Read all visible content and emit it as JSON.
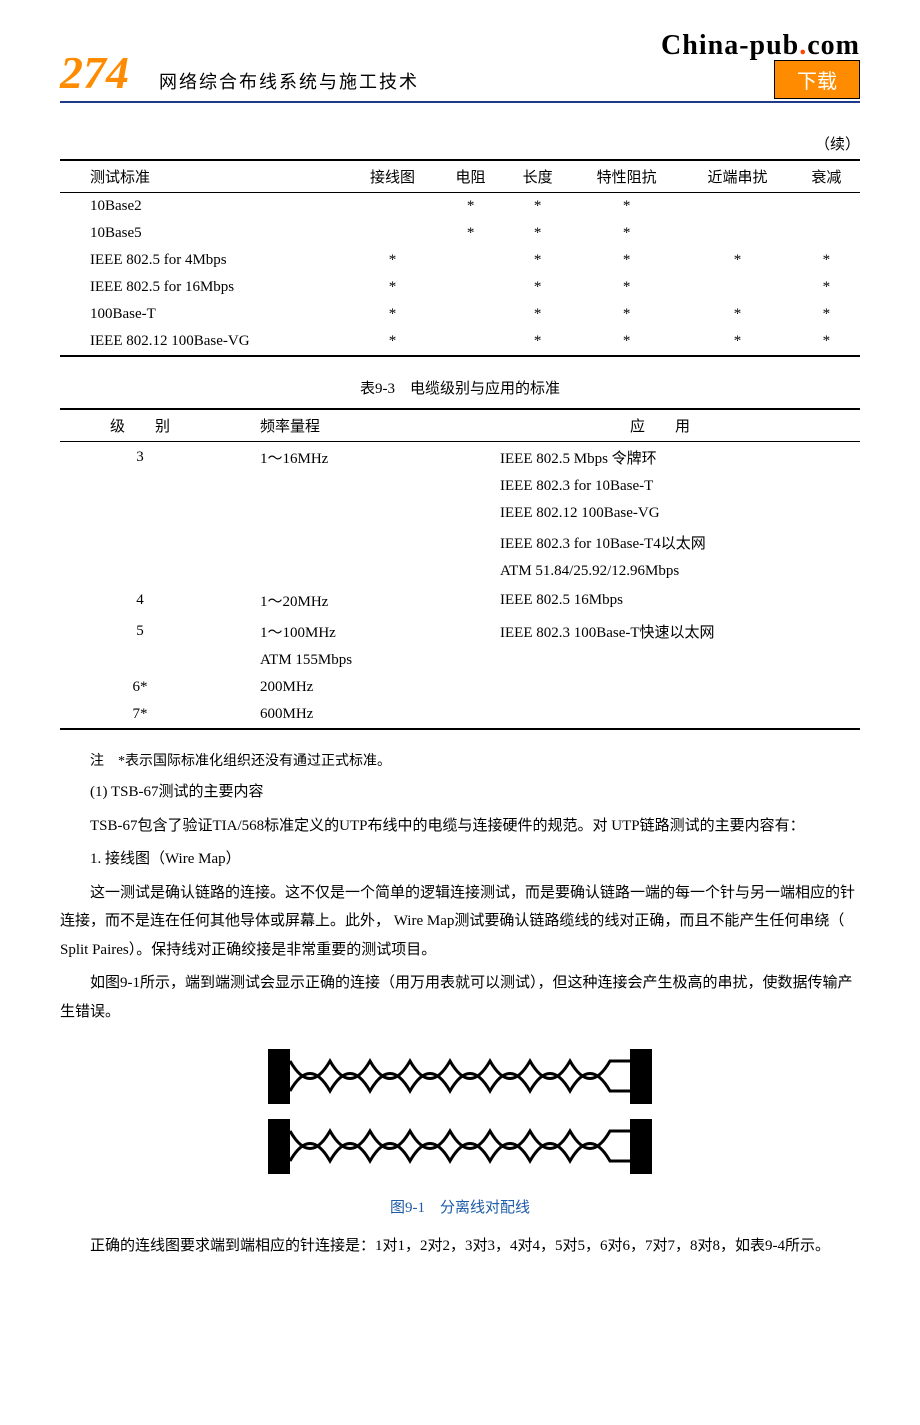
{
  "header": {
    "page_number": "274",
    "title": "网络综合布线系统与施工技术",
    "logo": "China-pub.com",
    "download": "下载"
  },
  "table1": {
    "continued": "（续）",
    "headers": [
      "测试标准",
      "接线图",
      "电阻",
      "长度",
      "特性阻抗",
      "近端串扰",
      "衰减"
    ],
    "rows": [
      [
        "10Base2",
        "",
        "*",
        "*",
        "*",
        "",
        ""
      ],
      [
        "10Base5",
        "",
        "*",
        "*",
        "*",
        "",
        ""
      ],
      [
        "IEEE 802.5 for 4Mbps",
        "*",
        "",
        "*",
        "*",
        "*",
        "*"
      ],
      [
        "IEEE 802.5 for 16Mbps",
        "*",
        "",
        "*",
        "*",
        "",
        "*"
      ],
      [
        "100Base-T",
        "*",
        "",
        "*",
        "*",
        "*",
        "*"
      ],
      [
        "IEEE 802.12 100Base-VG",
        "*",
        "",
        "*",
        "*",
        "*",
        "*"
      ]
    ]
  },
  "table2": {
    "caption": "表9-3　电缆级别与应用的标准",
    "headers": [
      "级　　别",
      "频率量程",
      "应　　用"
    ],
    "rows": [
      [
        "3",
        "1～16MHz",
        "IEEE 802.5 Mbps 令牌环"
      ],
      [
        "",
        "",
        "IEEE 802.3 for 10Base-T"
      ],
      [
        "",
        "",
        "IEEE 802.12 100Base-VG"
      ],
      [
        "",
        "",
        "IEEE 802.3 for 10Base-T4以太网"
      ],
      [
        "",
        "",
        "ATM 51.84/25.92/12.96Mbps"
      ],
      [
        "4",
        "1～20MHz",
        "IEEE 802.5 16Mbps"
      ],
      [
        "5",
        "1～100MHz",
        "IEEE 802.3 100Base-T快速以太网"
      ],
      [
        "",
        "ATM 155Mbps",
        ""
      ],
      [
        "6*",
        "200MHz",
        ""
      ],
      [
        "7*",
        "600MHz",
        ""
      ]
    ],
    "note": "注　*表示国际标准化组织还没有通过正式标准。"
  },
  "text": {
    "s1": "(1) TSB-67测试的主要内容",
    "s2": "TSB-67包含了验证TIA/568标准定义的UTP布线中的电缆与连接硬件的规范。对 UTP链路测试的主要内容有：",
    "s3": "1. 接线图（Wire Map）",
    "s4": "这一测试是确认链路的连接。这不仅是一个简单的逻辑连接测试，而是要确认链路一端的每一个针与另一端相应的针连接，而不是连在任何其他导体或屏幕上。此外， Wire Map测试要确认链路缆线的线对正确，而且不能产生任何串绕（ Split Paires）。保持线对正确绞接是非常重要的测试项目。",
    "s5": "如图9-1所示，端到端测试会显示正确的连接（用万用表就可以测试），但这种连接会产生极高的串扰，使数据传输产生错误。",
    "s6": "正确的连线图要求端到端相应的针连接是：1对1，2对2，3对3，4对4，5对5，6对6，7对7，8对8，如表9-4所示。"
  },
  "figure": {
    "caption": "图9-1　分离线对配线",
    "stroke": "#000000"
  }
}
